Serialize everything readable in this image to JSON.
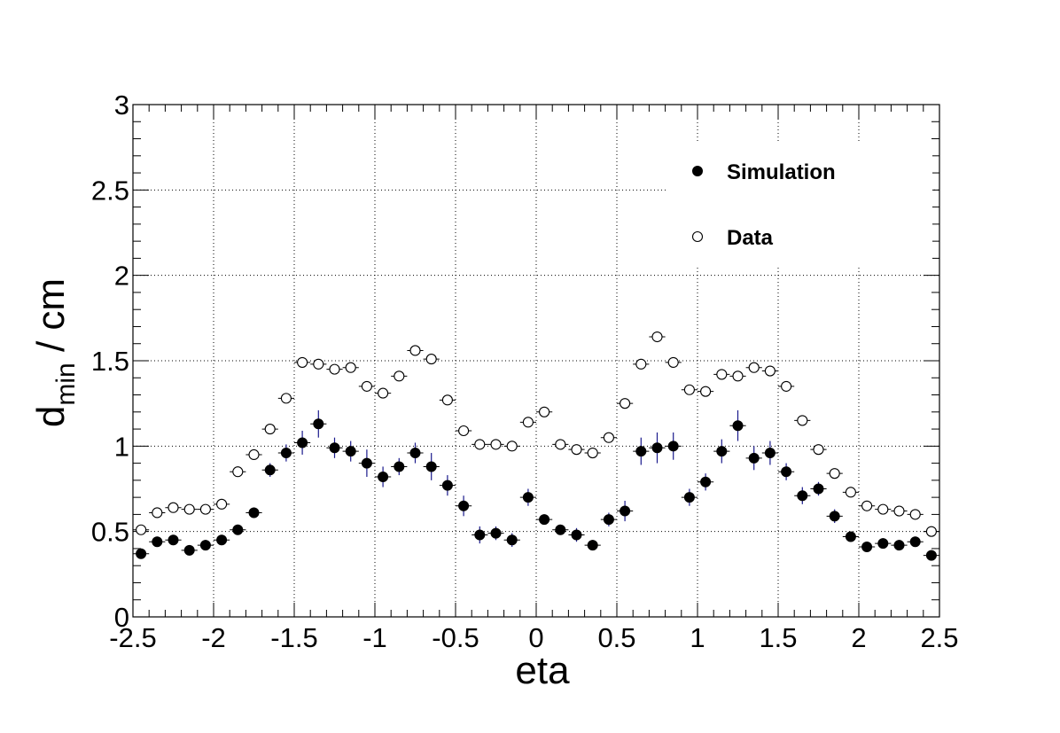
{
  "chart_data": {
    "type": "scatter",
    "title": "",
    "xlabel": "eta",
    "ylabel": {
      "base": "d",
      "subscript": "min",
      "suffix": " / cm"
    },
    "xlim": [
      -2.5,
      2.5
    ],
    "ylim": [
      0,
      3
    ],
    "grid": true,
    "grid_style": "dotted",
    "legend_position": "top-right",
    "xticks": [
      -2.5,
      -2,
      -1.5,
      -1,
      -0.5,
      0,
      0.5,
      1,
      1.5,
      2,
      2.5
    ],
    "xtick_labels": [
      "-2.5",
      "-2",
      "-1.5",
      "-1",
      "-0.5",
      "0",
      "0.5",
      "1",
      "1.5",
      "2",
      "2.5"
    ],
    "yticks": [
      0,
      0.5,
      1,
      1.5,
      2,
      2.5,
      3
    ],
    "ytick_labels": [
      "0",
      "0.5",
      "1",
      "1.5",
      "2",
      "2.5",
      "3"
    ],
    "x": [
      -2.45,
      -2.35,
      -2.25,
      -2.15,
      -2.05,
      -1.95,
      -1.85,
      -1.75,
      -1.65,
      -1.55,
      -1.45,
      -1.35,
      -1.25,
      -1.15,
      -1.05,
      -0.95,
      -0.85,
      -0.75,
      -0.65,
      -0.55,
      -0.45,
      -0.35,
      -0.25,
      -0.15,
      -0.05,
      0.05,
      0.15,
      0.25,
      0.35,
      0.45,
      0.55,
      0.65,
      0.75,
      0.85,
      0.95,
      1.05,
      1.15,
      1.25,
      1.35,
      1.45,
      1.55,
      1.65,
      1.75,
      1.85,
      1.95,
      2.05,
      2.15,
      2.25,
      2.35,
      2.45
    ],
    "series": [
      {
        "name": "Simulation",
        "marker": "filled-circle",
        "color": "#000000",
        "error_color": "#1a1a8c",
        "values": [
          0.37,
          0.44,
          0.45,
          0.39,
          0.42,
          0.45,
          0.51,
          0.61,
          0.86,
          0.96,
          1.02,
          1.13,
          0.99,
          0.97,
          0.9,
          0.82,
          0.88,
          0.96,
          0.88,
          0.77,
          0.65,
          0.48,
          0.49,
          0.45,
          0.7,
          0.57,
          0.51,
          0.48,
          0.42,
          0.57,
          0.62,
          0.97,
          0.99,
          1.0,
          0.7,
          0.79,
          0.97,
          1.12,
          0.93,
          0.96,
          0.85,
          0.71,
          0.75,
          0.59,
          0.47,
          0.41,
          0.43,
          0.42,
          0.44,
          0.36
        ],
        "errors": [
          0.03,
          0.03,
          0.03,
          0.03,
          0.03,
          0.03,
          0.03,
          0.03,
          0.04,
          0.05,
          0.07,
          0.08,
          0.06,
          0.06,
          0.08,
          0.06,
          0.05,
          0.06,
          0.08,
          0.06,
          0.06,
          0.05,
          0.04,
          0.04,
          0.05,
          0.03,
          0.03,
          0.04,
          0.03,
          0.04,
          0.06,
          0.08,
          0.09,
          0.08,
          0.05,
          0.05,
          0.07,
          0.09,
          0.07,
          0.07,
          0.05,
          0.05,
          0.04,
          0.04,
          0.03,
          0.03,
          0.03,
          0.03,
          0.03,
          0.03
        ]
      },
      {
        "name": "Data",
        "marker": "open-circle",
        "color": "#000000",
        "values": [
          0.51,
          0.61,
          0.64,
          0.63,
          0.63,
          0.66,
          0.85,
          0.95,
          1.1,
          1.28,
          1.49,
          1.48,
          1.45,
          1.46,
          1.35,
          1.31,
          1.41,
          1.56,
          1.51,
          1.27,
          1.09,
          1.01,
          1.01,
          1.0,
          1.14,
          1.2,
          1.01,
          0.98,
          0.96,
          1.05,
          1.25,
          1.48,
          1.64,
          1.49,
          1.33,
          1.32,
          1.42,
          1.41,
          1.46,
          1.44,
          1.35,
          1.15,
          0.98,
          0.84,
          0.73,
          0.65,
          0.63,
          0.62,
          0.6,
          0.5
        ]
      }
    ]
  },
  "legend": [
    {
      "label": "Simulation",
      "marker": "filled-circle"
    },
    {
      "label": "Data",
      "marker": "open-circle"
    }
  ]
}
